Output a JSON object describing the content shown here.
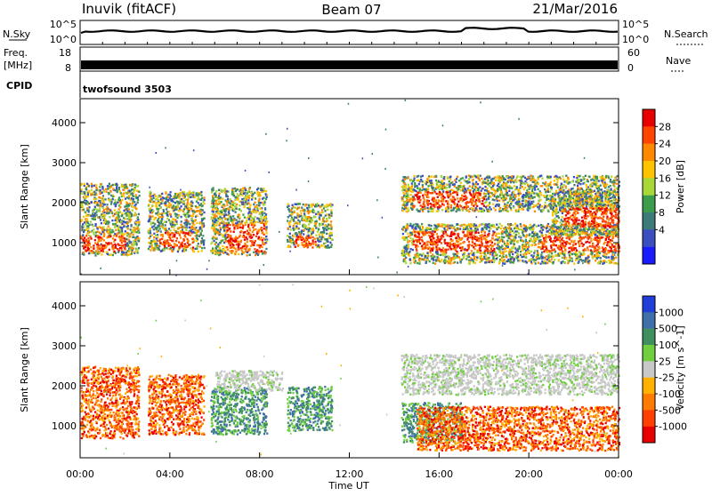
{
  "header": {
    "station": "Inuvik (fitACF)",
    "beam": "Beam 07",
    "date": "21/Mar/2016"
  },
  "strip_nsky": {
    "label": "N.Sky",
    "left_ticks": [
      "10^5",
      "10^0"
    ],
    "right_ticks": [
      "10^5",
      "10^0"
    ],
    "right_label": "N.Search"
  },
  "strip_freq": {
    "label_top": "Freq.",
    "label_bottom": "[MHz]",
    "left_ticks": [
      "18",
      "8"
    ],
    "right_ticks": [
      "60",
      "0"
    ],
    "right_label": "Nave"
  },
  "cpid": {
    "label": "CPID",
    "value": "twofsound 3503"
  },
  "chart_data": [
    {
      "type": "heatmap",
      "name": "power",
      "ylabel": "Slant Range [km]",
      "ylim": [
        200,
        4600
      ],
      "xlim": [
        0,
        24
      ],
      "yticks": [
        "1000",
        "2000",
        "3000",
        "4000"
      ],
      "colorbar_label": "Power [dB]",
      "colorbar_ticks": [
        "28",
        "24",
        "20",
        "16",
        "12",
        "8",
        "4"
      ],
      "colorbar_colors": [
        "#e80000",
        "#ff4400",
        "#ff8800",
        "#ffc400",
        "#a8d838",
        "#3c9c4c",
        "#3e7a78",
        "#3a4ec0",
        "#1a1aff"
      ],
      "echo_regions": [
        {
          "t0": 0.0,
          "t1": 2.6,
          "r0": 700,
          "r1": 2500,
          "core": [
            0.0,
            2.0,
            800,
            1200
          ]
        },
        {
          "t0": 3.0,
          "t1": 5.5,
          "r0": 800,
          "r1": 2300,
          "core": [
            3.5,
            5.0,
            900,
            1300
          ]
        },
        {
          "t0": 5.8,
          "t1": 8.3,
          "r0": 700,
          "r1": 2400,
          "core": [
            6.5,
            8.2,
            800,
            1500
          ]
        },
        {
          "t0": 9.2,
          "t1": 11.2,
          "r0": 900,
          "r1": 2000,
          "core": [
            9.5,
            10.5,
            900,
            1200
          ]
        },
        {
          "t0": 14.3,
          "t1": 24.0,
          "r0": 1800,
          "r1": 2700,
          "core": [
            14.8,
            18.0,
            1900,
            2300
          ]
        },
        {
          "t0": 14.3,
          "t1": 19.0,
          "r0": 500,
          "r1": 1500,
          "core": [
            14.8,
            18.5,
            800,
            1300
          ]
        },
        {
          "t0": 19.0,
          "t1": 24.0,
          "r0": 500,
          "r1": 1500,
          "core": [
            20.5,
            24.0,
            800,
            1200
          ]
        },
        {
          "t0": 21.0,
          "t1": 24.0,
          "r0": 1200,
          "r1": 2300,
          "core": [
            21.5,
            24.0,
            1400,
            1900
          ]
        }
      ]
    },
    {
      "type": "heatmap",
      "name": "velocity",
      "ylabel": "Slant Range [km]",
      "ylim": [
        200,
        4600
      ],
      "xlim": [
        0,
        24
      ],
      "yticks": [
        "1000",
        "2000",
        "3000",
        "4000"
      ],
      "colorbar_label": "Velocity [m s^-1]",
      "colorbar_ticks": [
        "1000",
        "500",
        "100",
        "25",
        "-25",
        "-100",
        "-500",
        "-1000"
      ],
      "colorbar_colors": [
        "#1f3fd8",
        "#3f6fa8",
        "#3f8f5f",
        "#6fcf3f",
        "#c8c8c8",
        "#ffb000",
        "#ff7a00",
        "#ff4000",
        "#e80000"
      ],
      "echo_regions": [
        {
          "t0": 0.0,
          "t1": 2.6,
          "r0": 700,
          "r1": 2500,
          "kind": "neg"
        },
        {
          "t0": 3.0,
          "t1": 5.5,
          "r0": 800,
          "r1": 2300,
          "kind": "neg"
        },
        {
          "t0": 5.8,
          "t1": 8.3,
          "r0": 800,
          "r1": 2000,
          "kind": "pos"
        },
        {
          "t0": 6.0,
          "t1": 9.0,
          "r0": 1900,
          "r1": 2400,
          "kind": "zero"
        },
        {
          "t0": 9.2,
          "t1": 11.2,
          "r0": 900,
          "r1": 2000,
          "kind": "pos"
        },
        {
          "t0": 14.3,
          "t1": 24.0,
          "r0": 1800,
          "r1": 2800,
          "kind": "zero"
        },
        {
          "t0": 14.3,
          "t1": 17.0,
          "r0": 600,
          "r1": 1600,
          "kind": "pos"
        },
        {
          "t0": 15.0,
          "t1": 24.0,
          "r0": 400,
          "r1": 1500,
          "kind": "neg"
        }
      ]
    }
  ],
  "x_axis": {
    "ticks": [
      "00:00",
      "04:00",
      "08:00",
      "12:00",
      "16:00",
      "20:00",
      "00:00"
    ],
    "label": "Time UT"
  },
  "colors": {
    "axis": "#000000",
    "gap": "#ffffff"
  }
}
